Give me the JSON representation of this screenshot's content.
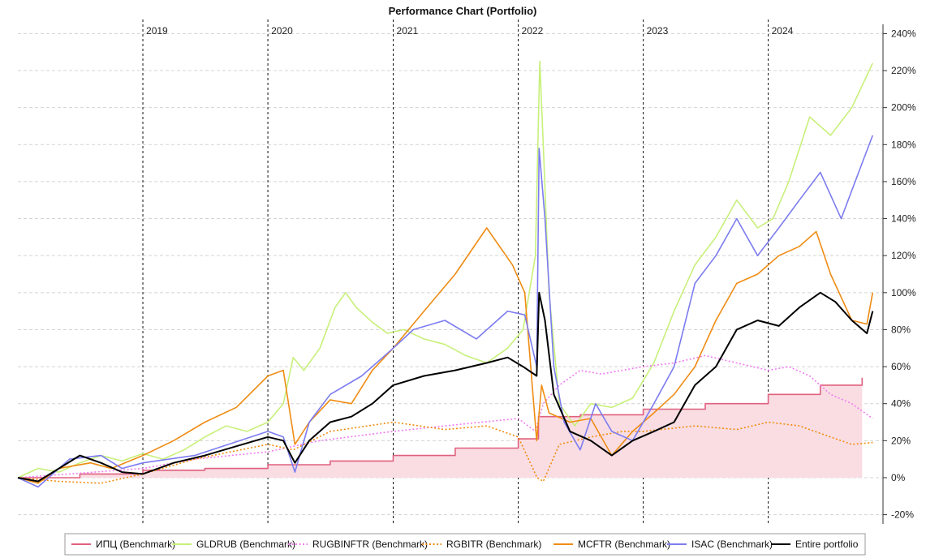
{
  "chart_data": {
    "type": "line",
    "title": "Performance Chart (Portfolio)",
    "xlabel": "",
    "ylabel": "",
    "x_range": [
      "2018-01-01",
      "2024-12-01"
    ],
    "ylim": [
      -25,
      245
    ],
    "x_ticks": [
      {
        "date": "2019-01-01",
        "label": "2019"
      },
      {
        "date": "2020-01-01",
        "label": "2020"
      },
      {
        "date": "2021-01-01",
        "label": "2021"
      },
      {
        "date": "2022-01-01",
        "label": "2022"
      },
      {
        "date": "2023-01-01",
        "label": "2023"
      },
      {
        "date": "2024-01-01",
        "label": "2024"
      }
    ],
    "y_ticks": [
      {
        "value": -20,
        "label": "-20%"
      },
      {
        "value": 0,
        "label": "0%"
      },
      {
        "value": 20,
        "label": "20%"
      },
      {
        "value": 40,
        "label": "40%"
      },
      {
        "value": 60,
        "label": "60%"
      },
      {
        "value": 80,
        "label": "80%"
      },
      {
        "value": 100,
        "label": "100%"
      },
      {
        "value": 120,
        "label": "120%"
      },
      {
        "value": 140,
        "label": "140%"
      },
      {
        "value": 160,
        "label": "160%"
      },
      {
        "value": 180,
        "label": "180%"
      },
      {
        "value": 200,
        "label": "200%"
      },
      {
        "value": 220,
        "label": "220%"
      },
      {
        "value": 240,
        "label": "240%"
      }
    ],
    "grid": true,
    "legend_position": "bottom",
    "series": [
      {
        "name": "ИПЦ (Benchmark)",
        "color": "#e0607e",
        "style": "solid",
        "fill": "#f9dde3",
        "step": true,
        "points": [
          [
            "2018-01-01",
            0
          ],
          [
            "2018-07-01",
            2
          ],
          [
            "2019-01-01",
            4
          ],
          [
            "2019-07-01",
            5
          ],
          [
            "2020-01-01",
            7
          ],
          [
            "2020-07-01",
            9
          ],
          [
            "2021-01-01",
            12
          ],
          [
            "2021-07-01",
            16
          ],
          [
            "2022-01-01",
            21
          ],
          [
            "2022-03-01",
            33
          ],
          [
            "2022-07-01",
            34
          ],
          [
            "2023-01-01",
            37
          ],
          [
            "2023-07-01",
            40
          ],
          [
            "2024-01-01",
            45
          ],
          [
            "2024-06-01",
            50
          ],
          [
            "2024-10-01",
            54
          ]
        ]
      },
      {
        "name": "GLDRUB (Benchmark)",
        "color": "#c8f07a",
        "style": "solid",
        "points": [
          [
            "2018-01-01",
            0
          ],
          [
            "2018-03-01",
            5
          ],
          [
            "2018-05-01",
            3
          ],
          [
            "2018-07-01",
            8
          ],
          [
            "2018-09-01",
            12
          ],
          [
            "2018-11-01",
            9
          ],
          [
            "2019-01-01",
            13
          ],
          [
            "2019-03-01",
            10
          ],
          [
            "2019-05-01",
            15
          ],
          [
            "2019-07-01",
            22
          ],
          [
            "2019-09-01",
            28
          ],
          [
            "2019-11-01",
            25
          ],
          [
            "2020-01-01",
            30
          ],
          [
            "2020-02-15",
            40
          ],
          [
            "2020-03-15",
            65
          ],
          [
            "2020-04-15",
            58
          ],
          [
            "2020-06-01",
            70
          ],
          [
            "2020-07-15",
            92
          ],
          [
            "2020-08-15",
            100
          ],
          [
            "2020-09-15",
            92
          ],
          [
            "2020-11-01",
            84
          ],
          [
            "2020-12-15",
            78
          ],
          [
            "2021-02-01",
            80
          ],
          [
            "2021-04-01",
            75
          ],
          [
            "2021-06-01",
            72
          ],
          [
            "2021-08-01",
            66
          ],
          [
            "2021-10-01",
            62
          ],
          [
            "2021-12-01",
            70
          ],
          [
            "2022-01-15",
            80
          ],
          [
            "2022-02-20",
            120
          ],
          [
            "2022-03-05",
            225
          ],
          [
            "2022-03-15",
            180
          ],
          [
            "2022-04-01",
            100
          ],
          [
            "2022-05-01",
            40
          ],
          [
            "2022-06-15",
            28
          ],
          [
            "2022-08-01",
            40
          ],
          [
            "2022-10-01",
            38
          ],
          [
            "2022-12-01",
            43
          ],
          [
            "2023-02-01",
            62
          ],
          [
            "2023-04-01",
            90
          ],
          [
            "2023-06-01",
            115
          ],
          [
            "2023-08-01",
            130
          ],
          [
            "2023-10-01",
            150
          ],
          [
            "2023-12-01",
            135
          ],
          [
            "2024-01-15",
            140
          ],
          [
            "2024-03-01",
            160
          ],
          [
            "2024-05-01",
            195
          ],
          [
            "2024-07-01",
            185
          ],
          [
            "2024-09-01",
            200
          ],
          [
            "2024-11-01",
            224
          ]
        ]
      },
      {
        "name": "RUGBINFTR (Benchmark)",
        "color": "#f07cf0",
        "style": "dotted",
        "points": [
          [
            "2018-01-01",
            0
          ],
          [
            "2018-06-01",
            2
          ],
          [
            "2019-01-01",
            5
          ],
          [
            "2019-06-01",
            10
          ],
          [
            "2020-01-01",
            14
          ],
          [
            "2020-06-01",
            20
          ],
          [
            "2021-01-01",
            25
          ],
          [
            "2021-06-01",
            28
          ],
          [
            "2022-01-01",
            32
          ],
          [
            "2022-02-20",
            25
          ],
          [
            "2022-03-15",
            40
          ],
          [
            "2022-05-01",
            50
          ],
          [
            "2022-07-01",
            58
          ],
          [
            "2022-09-01",
            56
          ],
          [
            "2022-11-01",
            58
          ],
          [
            "2023-01-01",
            60
          ],
          [
            "2023-04-01",
            62
          ],
          [
            "2023-07-01",
            66
          ],
          [
            "2023-10-01",
            62
          ],
          [
            "2024-01-01",
            58
          ],
          [
            "2024-03-01",
            60
          ],
          [
            "2024-05-01",
            55
          ],
          [
            "2024-07-01",
            45
          ],
          [
            "2024-09-01",
            40
          ],
          [
            "2024-11-01",
            32
          ]
        ]
      },
      {
        "name": "RGBITR (Benchmark)",
        "color": "#f08c0c",
        "style": "dotted",
        "points": [
          [
            "2018-01-01",
            0
          ],
          [
            "2018-05-01",
            -2
          ],
          [
            "2018-09-01",
            -3
          ],
          [
            "2019-01-01",
            2
          ],
          [
            "2019-06-01",
            10
          ],
          [
            "2020-01-01",
            18
          ],
          [
            "2020-03-15",
            15
          ],
          [
            "2020-07-01",
            25
          ],
          [
            "2021-01-01",
            30
          ],
          [
            "2021-06-01",
            26
          ],
          [
            "2021-10-01",
            28
          ],
          [
            "2022-01-01",
            22
          ],
          [
            "2022-02-25",
            0
          ],
          [
            "2022-03-15",
            -2
          ],
          [
            "2022-05-01",
            18
          ],
          [
            "2022-08-01",
            22
          ],
          [
            "2022-11-01",
            25
          ],
          [
            "2023-01-01",
            25
          ],
          [
            "2023-06-01",
            28
          ],
          [
            "2023-10-01",
            26
          ],
          [
            "2024-01-01",
            30
          ],
          [
            "2024-04-01",
            28
          ],
          [
            "2024-07-01",
            22
          ],
          [
            "2024-09-01",
            18
          ],
          [
            "2024-11-01",
            19
          ]
        ]
      },
      {
        "name": "MCFTR (Benchmark)",
        "color": "#ef8c14",
        "style": "solid",
        "points": [
          [
            "2018-01-01",
            0
          ],
          [
            "2018-03-01",
            -3
          ],
          [
            "2018-05-01",
            5
          ],
          [
            "2018-08-01",
            8
          ],
          [
            "2018-10-01",
            5
          ],
          [
            "2019-01-01",
            12
          ],
          [
            "2019-04-01",
            20
          ],
          [
            "2019-07-01",
            30
          ],
          [
            "2019-10-01",
            38
          ],
          [
            "2020-01-01",
            55
          ],
          [
            "2020-02-15",
            58
          ],
          [
            "2020-03-20",
            18
          ],
          [
            "2020-05-01",
            30
          ],
          [
            "2020-07-01",
            42
          ],
          [
            "2020-09-01",
            40
          ],
          [
            "2020-11-01",
            58
          ],
          [
            "2021-01-01",
            70
          ],
          [
            "2021-04-01",
            90
          ],
          [
            "2021-07-01",
            110
          ],
          [
            "2021-10-01",
            135
          ],
          [
            "2021-12-15",
            115
          ],
          [
            "2022-01-20",
            100
          ],
          [
            "2022-02-24",
            20
          ],
          [
            "2022-03-10",
            50
          ],
          [
            "2022-04-01",
            35
          ],
          [
            "2022-06-01",
            30
          ],
          [
            "2022-08-01",
            32
          ],
          [
            "2022-10-01",
            12
          ],
          [
            "2022-12-01",
            25
          ],
          [
            "2023-02-01",
            35
          ],
          [
            "2023-04-01",
            45
          ],
          [
            "2023-06-01",
            60
          ],
          [
            "2023-08-01",
            85
          ],
          [
            "2023-10-01",
            105
          ],
          [
            "2023-12-01",
            110
          ],
          [
            "2024-02-01",
            120
          ],
          [
            "2024-04-01",
            125
          ],
          [
            "2024-05-20",
            133
          ],
          [
            "2024-07-01",
            110
          ],
          [
            "2024-09-01",
            85
          ],
          [
            "2024-10-15",
            83
          ],
          [
            "2024-11-01",
            100
          ]
        ]
      },
      {
        "name": "ISAC (Benchmark)",
        "color": "#7c7cf0",
        "style": "solid",
        "points": [
          [
            "2018-01-01",
            0
          ],
          [
            "2018-03-01",
            -5
          ],
          [
            "2018-06-01",
            10
          ],
          [
            "2018-09-01",
            12
          ],
          [
            "2018-11-01",
            5
          ],
          [
            "2019-01-01",
            8
          ],
          [
            "2019-06-01",
            12
          ],
          [
            "2020-01-01",
            25
          ],
          [
            "2020-02-15",
            22
          ],
          [
            "2020-03-20",
            3
          ],
          [
            "2020-05-01",
            30
          ],
          [
            "2020-07-01",
            45
          ],
          [
            "2020-10-01",
            55
          ],
          [
            "2021-01-01",
            70
          ],
          [
            "2021-03-01",
            80
          ],
          [
            "2021-06-01",
            85
          ],
          [
            "2021-09-01",
            75
          ],
          [
            "2021-12-01",
            90
          ],
          [
            "2022-01-20",
            88
          ],
          [
            "2022-02-24",
            60
          ],
          [
            "2022-03-03",
            178
          ],
          [
            "2022-03-20",
            140
          ],
          [
            "2022-04-15",
            60
          ],
          [
            "2022-05-15",
            30
          ],
          [
            "2022-07-01",
            15
          ],
          [
            "2022-08-15",
            40
          ],
          [
            "2022-10-01",
            25
          ],
          [
            "2022-12-01",
            20
          ],
          [
            "2023-02-01",
            40
          ],
          [
            "2023-04-01",
            60
          ],
          [
            "2023-06-01",
            105
          ],
          [
            "2023-08-01",
            120
          ],
          [
            "2023-10-01",
            140
          ],
          [
            "2023-12-01",
            120
          ],
          [
            "2024-02-01",
            135
          ],
          [
            "2024-04-01",
            150
          ],
          [
            "2024-06-01",
            165
          ],
          [
            "2024-08-01",
            140
          ],
          [
            "2024-10-01",
            170
          ],
          [
            "2024-11-01",
            185
          ]
        ]
      },
      {
        "name": "Entire portfolio",
        "color": "#000000",
        "style": "solid",
        "points": [
          [
            "2018-01-01",
            0
          ],
          [
            "2018-03-01",
            -2
          ],
          [
            "2018-05-01",
            5
          ],
          [
            "2018-07-01",
            12
          ],
          [
            "2018-09-01",
            8
          ],
          [
            "2018-11-01",
            3
          ],
          [
            "2019-01-01",
            2
          ],
          [
            "2019-04-01",
            8
          ],
          [
            "2019-07-01",
            12
          ],
          [
            "2019-10-01",
            17
          ],
          [
            "2020-01-01",
            22
          ],
          [
            "2020-02-15",
            20
          ],
          [
            "2020-03-20",
            8
          ],
          [
            "2020-05-01",
            20
          ],
          [
            "2020-07-01",
            30
          ],
          [
            "2020-09-01",
            33
          ],
          [
            "2020-11-01",
            40
          ],
          [
            "2021-01-01",
            50
          ],
          [
            "2021-04-01",
            55
          ],
          [
            "2021-07-01",
            58
          ],
          [
            "2021-10-01",
            62
          ],
          [
            "2021-12-01",
            65
          ],
          [
            "2022-01-15",
            60
          ],
          [
            "2022-02-24",
            55
          ],
          [
            "2022-03-03",
            100
          ],
          [
            "2022-03-20",
            85
          ],
          [
            "2022-04-15",
            45
          ],
          [
            "2022-06-01",
            25
          ],
          [
            "2022-08-01",
            20
          ],
          [
            "2022-10-01",
            12
          ],
          [
            "2022-12-01",
            20
          ],
          [
            "2023-02-01",
            25
          ],
          [
            "2023-04-01",
            30
          ],
          [
            "2023-06-01",
            50
          ],
          [
            "2023-08-01",
            60
          ],
          [
            "2023-10-01",
            80
          ],
          [
            "2023-12-01",
            85
          ],
          [
            "2024-02-01",
            82
          ],
          [
            "2024-04-01",
            92
          ],
          [
            "2024-06-01",
            100
          ],
          [
            "2024-07-15",
            95
          ],
          [
            "2024-09-01",
            85
          ],
          [
            "2024-10-15",
            78
          ],
          [
            "2024-11-01",
            90
          ]
        ]
      }
    ]
  }
}
